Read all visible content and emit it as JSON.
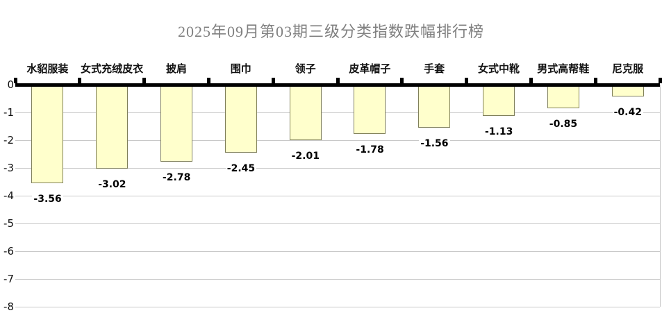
{
  "chart_data": {
    "type": "bar",
    "title": "2025年09月第03期三级分类指数跌幅排行榜",
    "categories": [
      "水貂服装",
      "女式充绒皮衣",
      "披肩",
      "围巾",
      "领子",
      "皮革帽子",
      "手套",
      "女式中靴",
      "男式高帮鞋",
      "尼克服"
    ],
    "values": [
      -3.56,
      -3.02,
      -2.78,
      -2.45,
      -2.01,
      -1.78,
      -1.56,
      -1.13,
      -0.85,
      -0.42
    ],
    "value_labels": [
      "-3.56",
      "-3.02",
      "-2.78",
      "-2.45",
      "-2.01",
      "-1.78",
      "-1.56",
      "-1.13",
      "-0.85",
      "-0.42"
    ],
    "xlabel": "",
    "ylabel": "",
    "ylim": [
      -8,
      0
    ],
    "yticks": [
      0,
      -1,
      -2,
      -3,
      -4,
      -5,
      -6,
      -7,
      -8
    ],
    "grid": true,
    "legend": false,
    "bar_color": "#FFFFCC",
    "bar_border_color": "#80805A",
    "axis_color": "#000000",
    "gridline_color": "#C8C8C8",
    "title_color": "#808080",
    "background_color": "#FFFFFF"
  }
}
